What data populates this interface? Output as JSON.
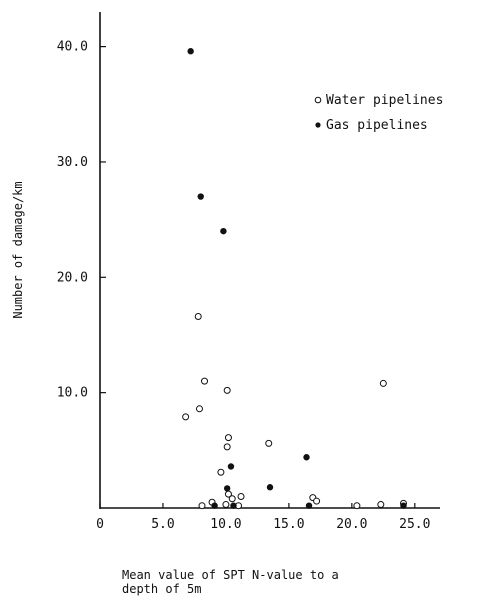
{
  "chart_data": {
    "type": "scatter",
    "title": "",
    "xlabel_lines": [
      "Mean value of SPT N-value to a",
      "depth of 5m"
    ],
    "ylabel": "Number of damage/km",
    "xlim": [
      0,
      27
    ],
    "ylim": [
      0,
      43
    ],
    "x_ticks": [
      {
        "value": 0,
        "label": "0"
      },
      {
        "value": 5,
        "label": "5.0"
      },
      {
        "value": 10,
        "label": "10.0"
      },
      {
        "value": 15,
        "label": "15.0"
      },
      {
        "value": 20,
        "label": "20.0"
      },
      {
        "value": 25,
        "label": "25.0"
      }
    ],
    "y_ticks": [
      {
        "value": 10,
        "label": "10.0"
      },
      {
        "value": 20,
        "label": "20.0"
      },
      {
        "value": 30,
        "label": "30.0"
      },
      {
        "value": 40,
        "label": "40.0"
      }
    ],
    "grid": false,
    "legend_position": "top-right",
    "series": [
      {
        "name": "Water pipelines",
        "marker": "open-circle",
        "points": [
          {
            "x": 6.8,
            "y": 7.9
          },
          {
            "x": 7.8,
            "y": 16.6
          },
          {
            "x": 8.3,
            "y": 11.0
          },
          {
            "x": 7.9,
            "y": 8.6
          },
          {
            "x": 10.1,
            "y": 10.2
          },
          {
            "x": 10.1,
            "y": 5.3
          },
          {
            "x": 10.2,
            "y": 6.1
          },
          {
            "x": 9.6,
            "y": 3.1
          },
          {
            "x": 13.4,
            "y": 5.6
          },
          {
            "x": 22.5,
            "y": 10.8
          },
          {
            "x": 8.9,
            "y": 0.5
          },
          {
            "x": 10.2,
            "y": 1.2
          },
          {
            "x": 10.5,
            "y": 0.8
          },
          {
            "x": 11.2,
            "y": 1.0
          },
          {
            "x": 10.0,
            "y": 0.3
          },
          {
            "x": 16.9,
            "y": 0.9
          },
          {
            "x": 17.2,
            "y": 0.6
          },
          {
            "x": 8.1,
            "y": 0.2
          },
          {
            "x": 11.0,
            "y": 0.2
          },
          {
            "x": 24.1,
            "y": 0.4
          },
          {
            "x": 22.3,
            "y": 0.3
          },
          {
            "x": 20.4,
            "y": 0.2
          }
        ]
      },
      {
        "name": "Gas pipelines",
        "marker": "filled-circle",
        "points": [
          {
            "x": 7.2,
            "y": 39.6
          },
          {
            "x": 8.0,
            "y": 27.0
          },
          {
            "x": 9.8,
            "y": 24.0
          },
          {
            "x": 10.4,
            "y": 3.6
          },
          {
            "x": 10.1,
            "y": 1.7
          },
          {
            "x": 13.5,
            "y": 1.8
          },
          {
            "x": 16.4,
            "y": 4.4
          },
          {
            "x": 10.6,
            "y": 0.2
          },
          {
            "x": 9.1,
            "y": 0.2
          },
          {
            "x": 16.6,
            "y": 0.2
          },
          {
            "x": 24.1,
            "y": 0.2
          }
        ]
      }
    ]
  }
}
